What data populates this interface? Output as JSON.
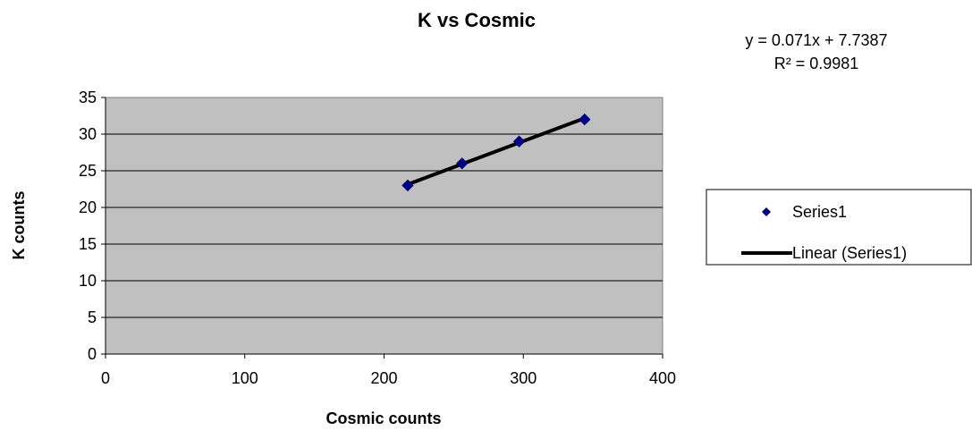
{
  "chart_data": {
    "type": "scatter",
    "title": "K vs Cosmic",
    "xlabel": "Cosmic counts",
    "ylabel": "K counts",
    "xlim": [
      0,
      400
    ],
    "ylim": [
      0,
      35
    ],
    "x_ticks": [
      0,
      100,
      200,
      300,
      400
    ],
    "y_ticks": [
      0,
      5,
      10,
      15,
      20,
      25,
      30,
      35
    ],
    "grid": "horizontal",
    "legend_position": "right",
    "series": [
      {
        "name": "Series1",
        "marker": "diamond",
        "color": "#000080",
        "x": [
          217,
          256,
          297,
          344
        ],
        "y": [
          23,
          26,
          29,
          32
        ]
      }
    ],
    "trendline": {
      "name": "Linear (Series1)",
      "type": "linear",
      "slope": 0.071,
      "intercept": 7.7387,
      "x_range": [
        217,
        344
      ],
      "color": "#000000",
      "equation_text": "y = 0.071x + 7.7387",
      "r2_text": "R² = 0.9981"
    },
    "plot_background": "#c0c0c0"
  }
}
